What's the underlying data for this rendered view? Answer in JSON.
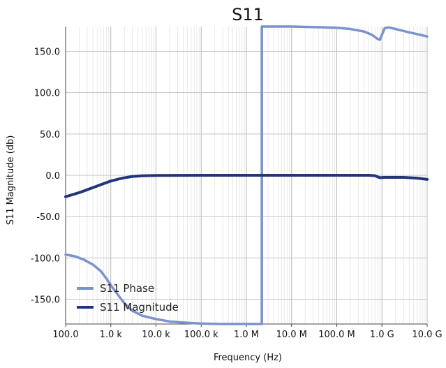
{
  "chart_data": {
    "type": "line",
    "title": "S11",
    "xlabel": "Frequency (Hz)",
    "ylabel": "S11 Magnitude (db)",
    "x_scale": "log",
    "xlim": [
      100,
      10000000000
    ],
    "ylim": [
      -180,
      180
    ],
    "x_ticks": [
      {
        "value": 100,
        "label": "100.0"
      },
      {
        "value": 1000,
        "label": "1.0 k"
      },
      {
        "value": 10000,
        "label": "10.0 k"
      },
      {
        "value": 100000,
        "label": "100.0 k"
      },
      {
        "value": 1000000,
        "label": "1.0 M"
      },
      {
        "value": 10000000,
        "label": "10.0 M"
      },
      {
        "value": 100000000,
        "label": "100.0 M"
      },
      {
        "value": 1000000000,
        "label": "1.0 G"
      },
      {
        "value": 10000000000,
        "label": "10.0 G"
      }
    ],
    "y_ticks": [
      {
        "value": 150,
        "label": "150.0"
      },
      {
        "value": 100,
        "label": "100.0"
      },
      {
        "value": 50,
        "label": "50.0"
      },
      {
        "value": 0,
        "label": "0.0"
      },
      {
        "value": -50,
        "label": "-50.0"
      },
      {
        "value": -100,
        "label": "-100.0"
      },
      {
        "value": -150,
        "label": "-150.0"
      }
    ],
    "grid": true,
    "legend_position": "bottom-left",
    "series": [
      {
        "name": "S11 Phase",
        "color": "#7b93cc",
        "points": [
          [
            100,
            -96
          ],
          [
            160,
            -98
          ],
          [
            250,
            -102
          ],
          [
            400,
            -108
          ],
          [
            600,
            -116
          ],
          [
            800,
            -125
          ],
          [
            1000,
            -133
          ],
          [
            1500,
            -146
          ],
          [
            2000,
            -155
          ],
          [
            3000,
            -164
          ],
          [
            5000,
            -170
          ],
          [
            10000,
            -174
          ],
          [
            20000,
            -177
          ],
          [
            50000,
            -178.5
          ],
          [
            100000,
            -179.5
          ],
          [
            300000,
            -180
          ],
          [
            1000000,
            -180
          ],
          [
            2200000,
            -180
          ],
          [
            2200000,
            180
          ],
          [
            10000000,
            180
          ],
          [
            50000000,
            179
          ],
          [
            100000000,
            178.5
          ],
          [
            200000000,
            177
          ],
          [
            400000000,
            174
          ],
          [
            600000000,
            170
          ],
          [
            800000000,
            165
          ],
          [
            900000000,
            164
          ],
          [
            1000000000,
            170
          ],
          [
            1150000000,
            178
          ],
          [
            1400000000,
            179
          ],
          [
            2000000000,
            177
          ],
          [
            4000000000,
            173
          ],
          [
            10000000000,
            168
          ]
        ]
      },
      {
        "name": "S11 Magnitude",
        "color": "#233579",
        "points": [
          [
            100,
            -26
          ],
          [
            200,
            -21
          ],
          [
            400,
            -15
          ],
          [
            700,
            -10
          ],
          [
            1000,
            -7
          ],
          [
            1500,
            -4.5
          ],
          [
            2000,
            -3
          ],
          [
            3000,
            -1.5
          ],
          [
            5000,
            -0.6
          ],
          [
            10000,
            -0.2
          ],
          [
            100000,
            0
          ],
          [
            1000000,
            0
          ],
          [
            10000000,
            0
          ],
          [
            100000000,
            0
          ],
          [
            500000000,
            0
          ],
          [
            700000000,
            -0.5
          ],
          [
            900000000,
            -3
          ],
          [
            1100000000,
            -2.5
          ],
          [
            3000000000,
            -2.5
          ],
          [
            6000000000,
            -3.5
          ],
          [
            10000000000,
            -5
          ]
        ]
      }
    ]
  }
}
